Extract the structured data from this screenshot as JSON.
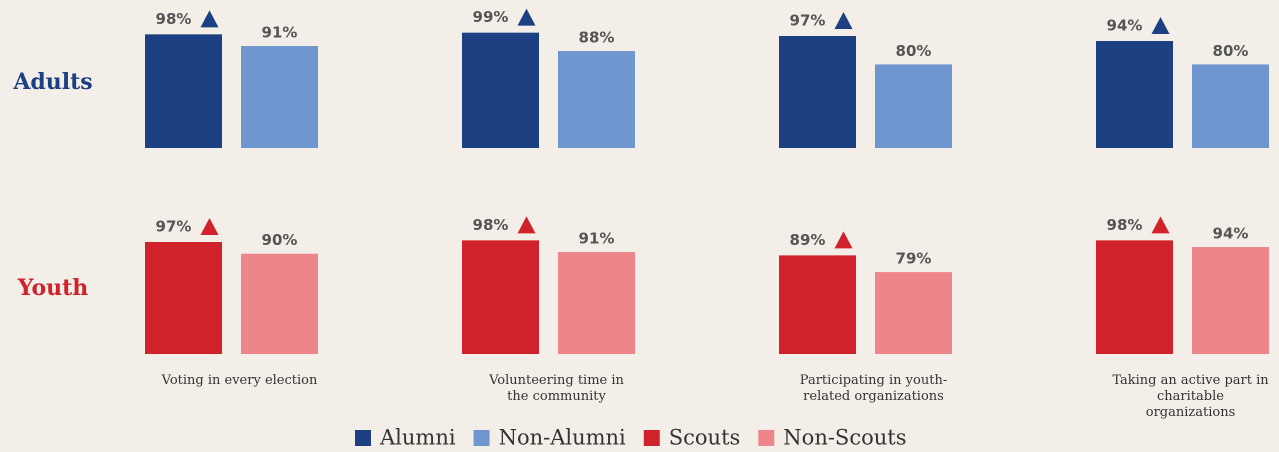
{
  "chart_data": [
    {
      "type": "bar",
      "title": "Adults",
      "ylim": [
        30,
        100
      ],
      "series": [
        {
          "name": "Alumni",
          "color": "#1c4081",
          "values": [
            98,
            99,
            97,
            94
          ],
          "value_labels": [
            "98%",
            "99%",
            "97%",
            "94%"
          ]
        },
        {
          "name": "Non-Alumni",
          "color": "#7096cf",
          "values": [
            91,
            88,
            80,
            80
          ],
          "value_labels": [
            "91%",
            "88%",
            "80%",
            "80%"
          ]
        }
      ]
    },
    {
      "type": "bar",
      "title": "Youth",
      "ylim": [
        30,
        100
      ],
      "categories": [
        "Voting in every election",
        "Volunteering time in the community",
        "Participating in youth-related organizations",
        "Taking an active part in charitable organizations"
      ],
      "series": [
        {
          "name": "Scouts",
          "color": "#d0222a",
          "values": [
            97,
            98,
            89,
            98
          ],
          "value_labels": [
            "97%",
            "98%",
            "89%",
            "98%"
          ]
        },
        {
          "name": "Non-Scouts",
          "color": "#ee858a",
          "values": [
            90,
            91,
            79,
            94
          ],
          "value_labels": [
            "90%",
            "91%",
            "79%",
            "94%"
          ]
        }
      ]
    }
  ]
}
